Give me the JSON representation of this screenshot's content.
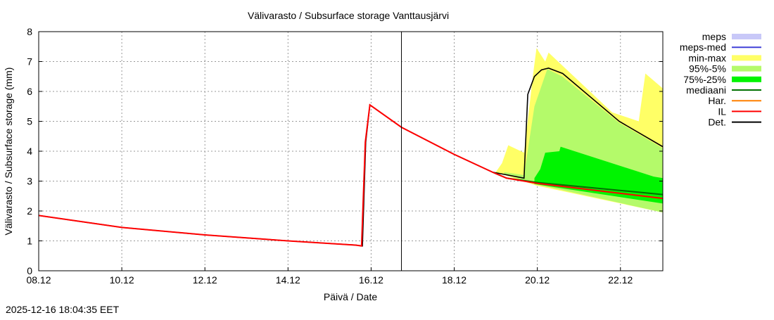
{
  "chart_data": {
    "type": "line",
    "title": "Välivarasto / Subsurface storage  Vanttausjärvi",
    "xlabel": "Päivä / Date",
    "ylabel": "Välivarasto / Subsurface storage (mm)",
    "x_unit": "days since 08.12",
    "xlim": [
      0,
      15.02
    ],
    "ylim": [
      0,
      8
    ],
    "grid": true,
    "legend_placement": "right",
    "x_ticks": [
      {
        "d": 0,
        "label": "08.12"
      },
      {
        "d": 2,
        "label": "10.12"
      },
      {
        "d": 4,
        "label": "12.12"
      },
      {
        "d": 6,
        "label": "14.12"
      },
      {
        "d": 8,
        "label": "16.12"
      },
      {
        "d": 10,
        "label": "18.12"
      },
      {
        "d": 12,
        "label": "20.12"
      },
      {
        "d": 14,
        "label": "22.12"
      }
    ],
    "y_ticks": [
      "0",
      "1",
      "2",
      "3",
      "4",
      "5",
      "6",
      "7",
      "8"
    ],
    "now_marker": 8.73,
    "legend": [
      {
        "label": "meps",
        "color": "#c8c8f8",
        "kind": "band"
      },
      {
        "label": "meps-med",
        "color": "#4040d8",
        "kind": "line"
      },
      {
        "label": "min-max",
        "color": "#ffff66",
        "kind": "band"
      },
      {
        "label": "95%-5%",
        "color": "#b4fa6a",
        "kind": "band"
      },
      {
        "label": "75%-25%",
        "color": "#00f400",
        "kind": "band"
      },
      {
        "label": "mediaani",
        "color": "#007000",
        "kind": "line"
      },
      {
        "label": "Har.",
        "color": "#ff8000",
        "kind": "line"
      },
      {
        "label": "IL",
        "color": "#ff0000",
        "kind": "line"
      },
      {
        "label": "Det.",
        "color": "#000000",
        "kind": "line"
      }
    ],
    "bands": [
      {
        "name": "min-max",
        "color": "#ffff66",
        "upper": [
          [
            11.0,
            3.3
          ],
          [
            11.15,
            3.6
          ],
          [
            11.3,
            4.2
          ],
          [
            11.68,
            3.95
          ],
          [
            11.9,
            6.6
          ],
          [
            11.98,
            7.45
          ],
          [
            12.19,
            7.0
          ],
          [
            12.27,
            7.3
          ],
          [
            13.8,
            5.3
          ],
          [
            14.44,
            5.0
          ],
          [
            14.6,
            6.6
          ],
          [
            15.02,
            6.1
          ]
        ],
        "lower": [
          [
            15.02,
            1.95
          ],
          [
            11.98,
            2.85
          ],
          [
            11.0,
            3.3
          ]
        ]
      },
      {
        "name": "95%-5%",
        "color": "#b4fa6a",
        "upper": [
          [
            11.2,
            3.3
          ],
          [
            11.68,
            3.2
          ],
          [
            11.93,
            5.5
          ],
          [
            12.24,
            6.75
          ],
          [
            12.6,
            6.5
          ],
          [
            13.97,
            4.95
          ],
          [
            15.02,
            4.1
          ]
        ],
        "lower": [
          [
            15.02,
            1.95
          ],
          [
            11.95,
            2.9
          ],
          [
            11.2,
            3.25
          ]
        ]
      },
      {
        "name": "75%-25%",
        "color": "#00f400",
        "upper": [
          [
            11.93,
            3.1
          ],
          [
            12.07,
            3.4
          ],
          [
            12.19,
            3.95
          ],
          [
            12.53,
            4.0
          ],
          [
            12.56,
            4.15
          ],
          [
            14.8,
            3.15
          ],
          [
            15.02,
            3.1
          ]
        ],
        "lower": [
          [
            15.02,
            2.25
          ],
          [
            11.93,
            2.9
          ]
        ]
      }
    ],
    "series": [
      {
        "name": "Det.",
        "color": "#000000",
        "points": [
          [
            0,
            1.85
          ],
          [
            2,
            1.45
          ],
          [
            4,
            1.2
          ],
          [
            6,
            1.0
          ],
          [
            7.62,
            0.86
          ],
          [
            7.79,
            0.83
          ],
          [
            7.87,
            4.3
          ],
          [
            7.97,
            5.55
          ],
          [
            8.73,
            4.8
          ],
          [
            9.99,
            3.9
          ],
          [
            10.92,
            3.3
          ],
          [
            11.68,
            3.1
          ],
          [
            11.77,
            5.9
          ],
          [
            11.93,
            6.5
          ],
          [
            12.1,
            6.72
          ],
          [
            12.27,
            6.78
          ],
          [
            12.61,
            6.6
          ],
          [
            13.97,
            5.0
          ],
          [
            15.02,
            4.15
          ]
        ]
      },
      {
        "name": "mediaani",
        "color": "#007000",
        "points": [
          [
            10.92,
            3.3
          ],
          [
            11.26,
            3.1
          ],
          [
            12.02,
            2.95
          ],
          [
            15.02,
            2.55
          ]
        ]
      },
      {
        "name": "IL",
        "color": "#ff0000",
        "points": [
          [
            0,
            1.85
          ],
          [
            2,
            1.45
          ],
          [
            4,
            1.2
          ],
          [
            6,
            1.0
          ],
          [
            7.62,
            0.86
          ],
          [
            7.77,
            0.83
          ],
          [
            7.86,
            4.3
          ],
          [
            7.97,
            5.55
          ],
          [
            8.73,
            4.8
          ],
          [
            9.99,
            3.9
          ],
          [
            10.92,
            3.3
          ],
          [
            11.26,
            3.1
          ],
          [
            12.02,
            2.92
          ],
          [
            15.02,
            2.42
          ]
        ]
      }
    ]
  },
  "footer": {
    "timestamp": "2025-12-16 18:04:35 EET"
  }
}
